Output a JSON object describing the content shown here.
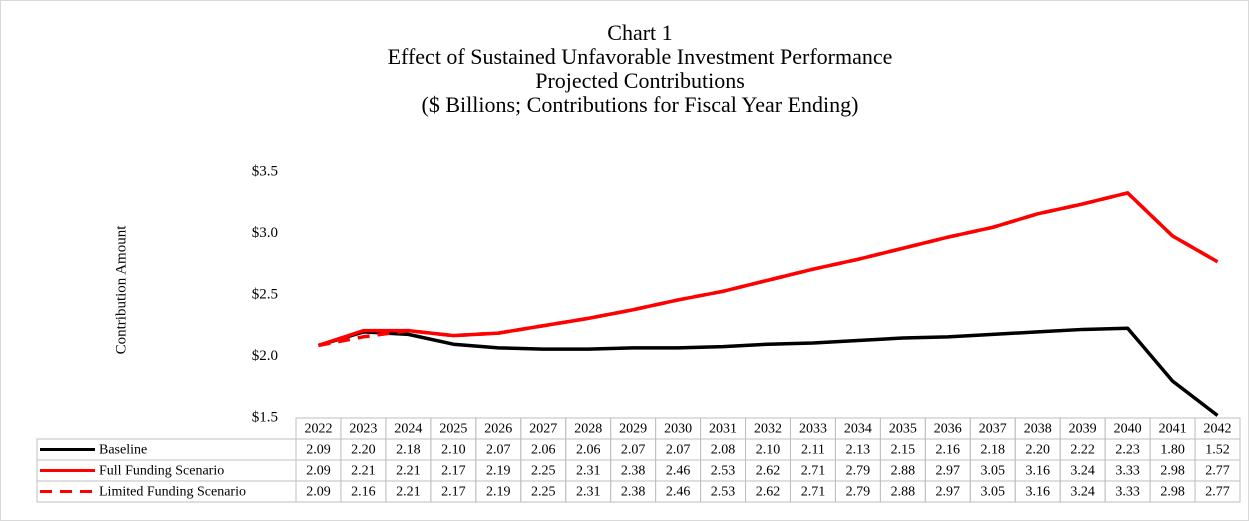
{
  "chart_data": {
    "type": "line",
    "title": [
      "Chart 1",
      "Effect of Sustained Unfavorable Investment Performance",
      "Projected Contributions",
      "($ Billions;  Contributions for Fiscal Year Ending)"
    ],
    "y_label": "Contribution Amount",
    "categories": [
      "2022",
      "2023",
      "2024",
      "2025",
      "2026",
      "2027",
      "2028",
      "2029",
      "2030",
      "2031",
      "2032",
      "2033",
      "2034",
      "2035",
      "2036",
      "2037",
      "2038",
      "2039",
      "2040",
      "2041",
      "2042"
    ],
    "ylim": [
      1.5,
      3.5
    ],
    "yticks": [
      {
        "value": 1.5,
        "label": "$1.5"
      },
      {
        "value": 2.0,
        "label": "$2.0"
      },
      {
        "value": 2.5,
        "label": "$2.5"
      },
      {
        "value": 3.0,
        "label": "$3.0"
      },
      {
        "value": 3.5,
        "label": "$3.5"
      }
    ],
    "grid": false,
    "series": [
      {
        "name": "Baseline",
        "color": "#000000",
        "dash": false,
        "values": [
          2.09,
          2.2,
          2.18,
          2.1,
          2.07,
          2.06,
          2.06,
          2.07,
          2.07,
          2.08,
          2.1,
          2.11,
          2.13,
          2.15,
          2.16,
          2.18,
          2.2,
          2.22,
          2.23,
          1.8,
          1.52
        ],
        "value_labels": [
          "2.09",
          "2.20",
          "2.18",
          "2.10",
          "2.07",
          "2.06",
          "2.06",
          "2.07",
          "2.07",
          "2.08",
          "2.10",
          "2.11",
          "2.13",
          "2.15",
          "2.16",
          "2.18",
          "2.20",
          "2.22",
          "2.23",
          "1.80",
          "1.52"
        ]
      },
      {
        "name": "Full Funding Scenario",
        "color": "#ff0000",
        "dash": false,
        "values": [
          2.09,
          2.21,
          2.21,
          2.17,
          2.19,
          2.25,
          2.31,
          2.38,
          2.46,
          2.53,
          2.62,
          2.71,
          2.79,
          2.88,
          2.97,
          3.05,
          3.16,
          3.24,
          3.33,
          2.98,
          2.77
        ],
        "value_labels": [
          "2.09",
          "2.21",
          "2.21",
          "2.17",
          "2.19",
          "2.25",
          "2.31",
          "2.38",
          "2.46",
          "2.53",
          "2.62",
          "2.71",
          "2.79",
          "2.88",
          "2.97",
          "3.05",
          "3.16",
          "3.24",
          "3.33",
          "2.98",
          "2.77"
        ]
      },
      {
        "name": "Limited Funding Scenario",
        "color": "#ff0000",
        "dash": true,
        "values": [
          2.09,
          2.16,
          2.21,
          2.17,
          2.19,
          2.25,
          2.31,
          2.38,
          2.46,
          2.53,
          2.62,
          2.71,
          2.79,
          2.88,
          2.97,
          3.05,
          3.16,
          3.24,
          3.33,
          2.98,
          2.77
        ],
        "value_labels": [
          "2.09",
          "2.16",
          "2.21",
          "2.17",
          "2.19",
          "2.25",
          "2.31",
          "2.38",
          "2.46",
          "2.53",
          "2.62",
          "2.71",
          "2.79",
          "2.88",
          "2.97",
          "3.05",
          "3.16",
          "3.24",
          "3.33",
          "2.98",
          "2.77"
        ]
      }
    ]
  }
}
